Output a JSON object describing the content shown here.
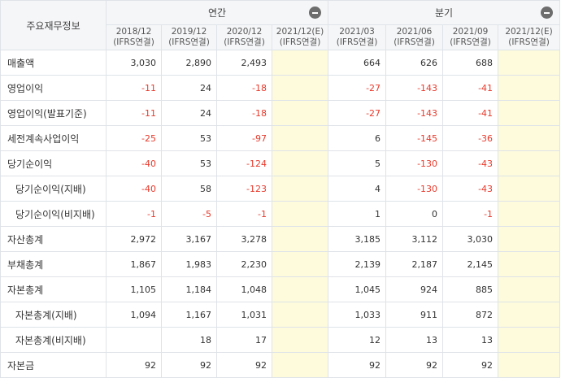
{
  "header": {
    "corner": "주요재무정보",
    "annual_label": "연간",
    "quarter_label": "분기",
    "annual_periods": [
      {
        "period": "2018/12",
        "basis": "(IFRS연결)"
      },
      {
        "period": "2019/12",
        "basis": "(IFRS연결)"
      },
      {
        "period": "2020/12",
        "basis": "(IFRS연결)"
      },
      {
        "period": "2021/12(E)",
        "basis": "(IFRS연결)"
      }
    ],
    "quarter_periods": [
      {
        "period": "2021/03",
        "basis": "(IFRS연결)"
      },
      {
        "period": "2021/06",
        "basis": "(IFRS연결)"
      },
      {
        "period": "2021/09",
        "basis": "(IFRS연결)"
      },
      {
        "period": "2021/12(E)",
        "basis": "(IFRS연결)"
      }
    ]
  },
  "rows": [
    {
      "label": "매출액",
      "annual": [
        "3,030",
        "2,890",
        "2,493",
        ""
      ],
      "quarter": [
        "664",
        "626",
        "688",
        ""
      ]
    },
    {
      "label": "영업이익",
      "annual": [
        "-11",
        "24",
        "-18",
        ""
      ],
      "quarter": [
        "-27",
        "-143",
        "-41",
        ""
      ]
    },
    {
      "label": "영업이익(발표기준)",
      "annual": [
        "-11",
        "24",
        "-18",
        ""
      ],
      "quarter": [
        "-27",
        "-143",
        "-41",
        ""
      ]
    },
    {
      "label": "세전계속사업이익",
      "annual": [
        "-25",
        "53",
        "-97",
        ""
      ],
      "quarter": [
        "6",
        "-145",
        "-36",
        ""
      ]
    },
    {
      "label": "당기순이익",
      "annual": [
        "-40",
        "53",
        "-124",
        ""
      ],
      "quarter": [
        "5",
        "-130",
        "-43",
        ""
      ]
    },
    {
      "label": "당기순이익(지배)",
      "annual": [
        "-40",
        "58",
        "-123",
        ""
      ],
      "quarter": [
        "4",
        "-130",
        "-43",
        ""
      ]
    },
    {
      "label": "당기순이익(비지배)",
      "annual": [
        "-1",
        "-5",
        "-1",
        ""
      ],
      "quarter": [
        "1",
        "0",
        "-1",
        ""
      ]
    },
    {
      "label": "자산총계",
      "annual": [
        "2,972",
        "3,167",
        "3,278",
        ""
      ],
      "quarter": [
        "3,185",
        "3,112",
        "3,030",
        ""
      ]
    },
    {
      "label": "부채총계",
      "annual": [
        "1,867",
        "1,983",
        "2,230",
        ""
      ],
      "quarter": [
        "2,139",
        "2,187",
        "2,145",
        ""
      ]
    },
    {
      "label": "자본총계",
      "annual": [
        "1,105",
        "1,184",
        "1,048",
        ""
      ],
      "quarter": [
        "1,045",
        "924",
        "885",
        ""
      ]
    },
    {
      "label": "자본총계(지배)",
      "annual": [
        "1,094",
        "1,167",
        "1,031",
        ""
      ],
      "quarter": [
        "1,033",
        "911",
        "872",
        ""
      ]
    },
    {
      "label": "자본총계(비지배)",
      "annual": [
        "",
        "18",
        "17",
        ""
      ],
      "quarter": [
        "12",
        "13",
        "13",
        ""
      ]
    },
    {
      "label": "자본금",
      "annual": [
        "92",
        "92",
        "92",
        ""
      ],
      "quarter": [
        "92",
        "92",
        "92",
        ""
      ]
    }
  ],
  "sub_rows": [
    5,
    6,
    10,
    11
  ],
  "colors": {
    "negative": "#e8392b",
    "estimate_bg": "#fefbdc",
    "header_bg": "#f5f6f8"
  }
}
